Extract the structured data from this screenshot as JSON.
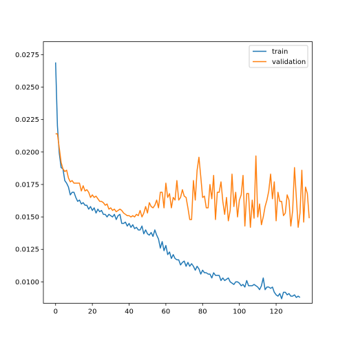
{
  "chart_data": {
    "type": "line",
    "title": "",
    "xlabel": "",
    "ylabel": "",
    "xlim": [
      -6.65,
      139.65
    ],
    "ylim": [
      0.00835,
      0.0285
    ],
    "xticks": [
      0,
      20,
      40,
      60,
      80,
      100,
      120
    ],
    "xtick_labels": [
      "0",
      "20",
      "40",
      "60",
      "80",
      "100",
      "120"
    ],
    "yticks": [
      0.01,
      0.0125,
      0.015,
      0.0175,
      0.02,
      0.0225,
      0.025,
      0.0275
    ],
    "ytick_labels": [
      "0.0100",
      "0.0125",
      "0.0150",
      "0.0175",
      "0.0200",
      "0.0225",
      "0.0250",
      "0.0275"
    ],
    "grid": false,
    "legend_position": "top-right",
    "series": [
      {
        "name": "train",
        "color": "#1f77b4",
        "values": [
          0.0269,
          0.022,
          0.0199,
          0.0188,
          0.0187,
          0.0178,
          0.0176,
          0.0173,
          0.0167,
          0.0169,
          0.0169,
          0.0165,
          0.0162,
          0.0163,
          0.016,
          0.0161,
          0.0159,
          0.0159,
          0.0156,
          0.0158,
          0.0155,
          0.0157,
          0.0153,
          0.0156,
          0.0154,
          0.0155,
          0.0152,
          0.0152,
          0.015,
          0.0152,
          0.0151,
          0.015,
          0.0152,
          0.0148,
          0.0151,
          0.0152,
          0.0145,
          0.0145,
          0.0146,
          0.0143,
          0.0145,
          0.0142,
          0.0144,
          0.0141,
          0.0142,
          0.014,
          0.014,
          0.0143,
          0.0137,
          0.014,
          0.0137,
          0.0136,
          0.0138,
          0.0135,
          0.014,
          0.0136,
          0.0133,
          0.0126,
          0.0131,
          0.0124,
          0.0128,
          0.0121,
          0.0123,
          0.0118,
          0.0121,
          0.0118,
          0.0117,
          0.0117,
          0.0113,
          0.0115,
          0.0116,
          0.0112,
          0.0115,
          0.0112,
          0.0114,
          0.0112,
          0.0109,
          0.0112,
          0.011,
          0.0106,
          0.0109,
          0.0107,
          0.0107,
          0.0106,
          0.0106,
          0.0103,
          0.0107,
          0.0105,
          0.0105,
          0.0105,
          0.0101,
          0.0103,
          0.0101,
          0.0102,
          0.0103,
          0.01,
          0.0099,
          0.0098,
          0.01,
          0.01,
          0.0099,
          0.0097,
          0.0098,
          0.0096,
          0.0101,
          0.0097,
          0.0097,
          0.0097,
          0.0098,
          0.0097,
          0.0096,
          0.0094,
          0.0097,
          0.0103,
          0.0094,
          0.0096,
          0.0096,
          0.0095,
          0.0096,
          0.0092,
          0.009,
          0.0089,
          0.0091,
          0.0087,
          0.0092,
          0.0092,
          0.009,
          0.0091,
          0.0089,
          0.0089,
          0.009,
          0.0088,
          0.0089,
          0.0088
        ]
      },
      {
        "name": "validation",
        "color": "#ff7f0e",
        "values": [
          0.0214,
          0.0214,
          0.0203,
          0.0192,
          0.0187,
          0.0185,
          0.0186,
          0.018,
          0.0177,
          0.0178,
          0.0176,
          0.0176,
          0.0176,
          0.0176,
          0.017,
          0.0174,
          0.017,
          0.0171,
          0.0169,
          0.0165,
          0.0167,
          0.0165,
          0.0166,
          0.0164,
          0.0162,
          0.0162,
          0.0161,
          0.0159,
          0.016,
          0.0156,
          0.0157,
          0.0155,
          0.0156,
          0.0154,
          0.0155,
          0.0156,
          0.0155,
          0.0153,
          0.0152,
          0.0151,
          0.0151,
          0.015,
          0.0151,
          0.015,
          0.0152,
          0.0151,
          0.0155,
          0.015,
          0.0153,
          0.0158,
          0.0153,
          0.0161,
          0.0158,
          0.0157,
          0.0159,
          0.0163,
          0.0157,
          0.0169,
          0.0169,
          0.0157,
          0.0176,
          0.0165,
          0.0168,
          0.0157,
          0.0165,
          0.0163,
          0.0178,
          0.0163,
          0.0165,
          0.0171,
          0.0166,
          0.0165,
          0.0157,
          0.0148,
          0.0148,
          0.0178,
          0.0163,
          0.0186,
          0.0196,
          0.0181,
          0.0165,
          0.0166,
          0.0157,
          0.0157,
          0.0175,
          0.0164,
          0.0182,
          0.0148,
          0.0169,
          0.0169,
          0.0177,
          0.0162,
          0.0152,
          0.0165,
          0.0147,
          0.0155,
          0.0183,
          0.0158,
          0.0169,
          0.015,
          0.0163,
          0.0167,
          0.0182,
          0.0143,
          0.0168,
          0.0168,
          0.0142,
          0.0163,
          0.0149,
          0.0197,
          0.015,
          0.016,
          0.0144,
          0.015,
          0.0158,
          0.0163,
          0.017,
          0.0183,
          0.0164,
          0.0177,
          0.0147,
          0.0169,
          0.0162,
          0.0162,
          0.0151,
          0.0153,
          0.0167,
          0.0163,
          0.0143,
          0.0155,
          0.0188,
          0.0165,
          0.0142,
          0.0153,
          0.0186,
          0.0146,
          0.0173,
          0.0168,
          0.0149
        ]
      }
    ]
  }
}
